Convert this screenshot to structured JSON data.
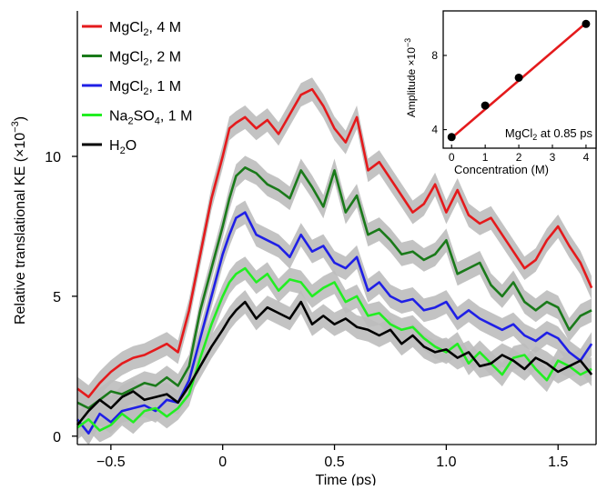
{
  "chart_data": [
    {
      "type": "line",
      "xlabel": "Time (ps)",
      "ylabel": "Relative translational KE (×10",
      "ylabel_sup": "−3",
      "ylabel_close": ")",
      "xlim": [
        -0.65,
        1.67
      ],
      "ylim": [
        -0.3,
        15.2
      ],
      "x_ticks": [
        {
          "v": -0.5,
          "label": "−0.5"
        },
        {
          "v": 0,
          "label": "0"
        },
        {
          "v": 0.5,
          "label": "0.5"
        },
        {
          "v": 1.0,
          "label": "1.0"
        },
        {
          "v": 1.5,
          "label": "1.5"
        }
      ],
      "y_ticks": [
        {
          "v": 0,
          "label": "0"
        },
        {
          "v": 5,
          "label": "5"
        },
        {
          "v": 10,
          "label": "10"
        }
      ],
      "error_band_color": "#bdbdbd",
      "legend_position": "top-left",
      "series": [
        {
          "key": "mgcl2_4m",
          "color": "#e41a1c",
          "legend_main": "MgCl",
          "legend_sub": "2",
          "legend_rest": ", 4 M",
          "x": [
            -0.65,
            -0.6,
            -0.55,
            -0.5,
            -0.45,
            -0.4,
            -0.35,
            -0.3,
            -0.25,
            -0.2,
            -0.15,
            -0.1,
            -0.05,
            0.0,
            0.03,
            0.06,
            0.1,
            0.15,
            0.2,
            0.25,
            0.3,
            0.35,
            0.4,
            0.45,
            0.5,
            0.55,
            0.6,
            0.65,
            0.7,
            0.75,
            0.8,
            0.85,
            0.9,
            0.95,
            1.0,
            1.05,
            1.1,
            1.15,
            1.2,
            1.25,
            1.3,
            1.35,
            1.4,
            1.45,
            1.5,
            1.55,
            1.6,
            1.65
          ],
          "y": [
            1.7,
            1.4,
            1.9,
            2.3,
            2.6,
            2.8,
            2.9,
            3.1,
            3.3,
            3.0,
            4.5,
            6.5,
            8.5,
            10.0,
            11.0,
            11.2,
            11.4,
            11.0,
            11.3,
            10.8,
            11.5,
            12.2,
            12.4,
            11.8,
            11.0,
            10.5,
            11.4,
            9.5,
            9.8,
            9.2,
            8.6,
            8.0,
            8.3,
            9.0,
            8.0,
            8.8,
            7.9,
            7.6,
            7.8,
            7.2,
            6.6,
            6.0,
            6.3,
            7.0,
            7.5,
            6.8,
            6.2,
            5.3
          ]
        },
        {
          "key": "mgcl2_2m",
          "color": "#1a7a1a",
          "legend_main": "MgCl",
          "legend_sub": "2",
          "legend_rest": ", 2 M",
          "x": [
            -0.65,
            -0.6,
            -0.55,
            -0.5,
            -0.45,
            -0.4,
            -0.35,
            -0.3,
            -0.25,
            -0.2,
            -0.15,
            -0.1,
            -0.05,
            0.0,
            0.03,
            0.06,
            0.1,
            0.15,
            0.2,
            0.25,
            0.3,
            0.35,
            0.4,
            0.45,
            0.5,
            0.55,
            0.6,
            0.65,
            0.7,
            0.75,
            0.8,
            0.85,
            0.9,
            0.95,
            1.0,
            1.05,
            1.1,
            1.15,
            1.2,
            1.25,
            1.3,
            1.35,
            1.4,
            1.45,
            1.5,
            1.55,
            1.6,
            1.65
          ],
          "y": [
            1.2,
            1.0,
            1.3,
            1.6,
            1.5,
            1.7,
            1.9,
            1.8,
            2.1,
            1.8,
            2.5,
            4.5,
            6.0,
            7.5,
            8.5,
            9.3,
            9.6,
            9.4,
            9.0,
            8.8,
            8.5,
            9.5,
            8.9,
            8.2,
            9.5,
            8.0,
            8.6,
            7.2,
            7.4,
            7.0,
            6.5,
            6.6,
            6.3,
            6.5,
            7.0,
            5.8,
            6.0,
            6.2,
            5.4,
            5.0,
            5.5,
            4.8,
            4.5,
            4.8,
            4.6,
            3.8,
            4.3,
            4.5
          ]
        },
        {
          "key": "mgcl2_1m",
          "color": "#1f1fe6",
          "legend_main": "MgCl",
          "legend_sub": "2",
          "legend_rest": ", 1 M",
          "x": [
            -0.65,
            -0.6,
            -0.55,
            -0.5,
            -0.45,
            -0.4,
            -0.35,
            -0.3,
            -0.25,
            -0.2,
            -0.15,
            -0.1,
            -0.05,
            0.0,
            0.03,
            0.06,
            0.1,
            0.15,
            0.2,
            0.25,
            0.3,
            0.35,
            0.4,
            0.45,
            0.5,
            0.55,
            0.6,
            0.65,
            0.7,
            0.75,
            0.8,
            0.85,
            0.9,
            0.95,
            1.0,
            1.05,
            1.1,
            1.15,
            1.2,
            1.25,
            1.3,
            1.35,
            1.4,
            1.45,
            1.5,
            1.55,
            1.6,
            1.65
          ],
          "y": [
            0.6,
            0.1,
            0.8,
            0.5,
            0.9,
            1.0,
            1.1,
            0.9,
            1.3,
            1.2,
            2.0,
            3.5,
            5.0,
            6.5,
            7.2,
            7.8,
            8.0,
            7.2,
            7.0,
            6.8,
            6.4,
            7.2,
            6.6,
            6.8,
            6.2,
            6.0,
            6.4,
            5.2,
            5.5,
            5.0,
            4.8,
            4.9,
            4.5,
            4.6,
            4.8,
            4.2,
            4.5,
            4.2,
            4.0,
            3.8,
            4.0,
            3.6,
            3.4,
            3.7,
            3.5,
            3.0,
            2.7,
            3.3
          ]
        },
        {
          "key": "na2so4_1m",
          "color": "#22ee22",
          "legend_main": "Na",
          "legend_sub": "2",
          "legend_main2": "SO",
          "legend_sub2": "4",
          "legend_rest": ", 1 M",
          "x": [
            -0.65,
            -0.6,
            -0.55,
            -0.5,
            -0.45,
            -0.4,
            -0.35,
            -0.3,
            -0.25,
            -0.2,
            -0.15,
            -0.1,
            -0.05,
            0.0,
            0.03,
            0.06,
            0.1,
            0.15,
            0.2,
            0.25,
            0.3,
            0.35,
            0.4,
            0.45,
            0.5,
            0.55,
            0.6,
            0.65,
            0.7,
            0.75,
            0.8,
            0.85,
            0.9,
            0.95,
            1.0,
            1.05,
            1.1,
            1.15,
            1.2,
            1.25,
            1.3,
            1.35,
            1.4,
            1.45,
            1.5,
            1.55,
            1.6,
            1.65
          ],
          "y": [
            0.3,
            0.6,
            0.2,
            0.4,
            0.8,
            0.5,
            0.9,
            1.0,
            0.7,
            1.0,
            1.5,
            2.8,
            4.0,
            5.0,
            5.5,
            5.8,
            6.0,
            5.5,
            5.8,
            5.2,
            5.6,
            5.5,
            5.0,
            5.3,
            5.5,
            4.8,
            5.0,
            4.3,
            4.4,
            4.0,
            3.8,
            3.9,
            3.5,
            3.2,
            3.0,
            3.3,
            2.6,
            3.0,
            2.6,
            2.2,
            2.8,
            2.9,
            2.4,
            2.0,
            2.7,
            2.5,
            2.2,
            2.4
          ]
        },
        {
          "key": "h2o",
          "color": "#000000",
          "legend_main": "H",
          "legend_sub": "2",
          "legend_rest": "O",
          "x": [
            -0.65,
            -0.6,
            -0.55,
            -0.5,
            -0.45,
            -0.4,
            -0.35,
            -0.3,
            -0.25,
            -0.2,
            -0.15,
            -0.1,
            -0.05,
            0.0,
            0.03,
            0.06,
            0.1,
            0.15,
            0.2,
            0.25,
            0.3,
            0.35,
            0.4,
            0.45,
            0.5,
            0.55,
            0.6,
            0.65,
            0.7,
            0.75,
            0.8,
            0.85,
            0.9,
            0.95,
            1.0,
            1.05,
            1.1,
            1.15,
            1.2,
            1.25,
            1.3,
            1.35,
            1.4,
            1.45,
            1.5,
            1.55,
            1.6,
            1.65
          ],
          "y": [
            0.4,
            0.9,
            1.3,
            1.0,
            1.4,
            1.6,
            1.3,
            1.4,
            1.5,
            1.2,
            1.8,
            2.5,
            3.2,
            3.8,
            4.2,
            4.5,
            4.8,
            4.2,
            4.6,
            4.4,
            4.2,
            4.8,
            4.0,
            4.3,
            4.0,
            4.2,
            3.9,
            3.8,
            3.6,
            3.8,
            3.3,
            3.6,
            3.2,
            3.0,
            3.1,
            2.8,
            3.0,
            2.5,
            2.6,
            2.9,
            2.7,
            2.4,
            2.8,
            2.6,
            2.3,
            2.5,
            2.7,
            2.2
          ]
        }
      ]
    },
    {
      "type": "scatter",
      "xlabel": "Concentration (M)",
      "ylabel": "Amplitude ×10",
      "ylabel_sup": "−3",
      "annotation_main": "MgCl",
      "annotation_sub": "2",
      "annotation_rest": " at 0.85 ps",
      "xlim": [
        -0.25,
        4.3
      ],
      "ylim": [
        3.0,
        10.4
      ],
      "x_ticks": [
        {
          "v": 0,
          "label": "0"
        },
        {
          "v": 1,
          "label": "1"
        },
        {
          "v": 2,
          "label": "2"
        },
        {
          "v": 3,
          "label": "3"
        },
        {
          "v": 4,
          "label": "4"
        }
      ],
      "y_ticks": [
        {
          "v": 4,
          "label": "4"
        },
        {
          "v": 8,
          "label": "8"
        }
      ],
      "points": {
        "x": [
          0,
          1,
          2,
          4
        ],
        "y": [
          3.6,
          5.3,
          6.8,
          9.7
        ]
      },
      "fit_line": {
        "color": "#e41a1c",
        "x": [
          0,
          4
        ],
        "y": [
          3.55,
          9.75
        ]
      }
    }
  ]
}
